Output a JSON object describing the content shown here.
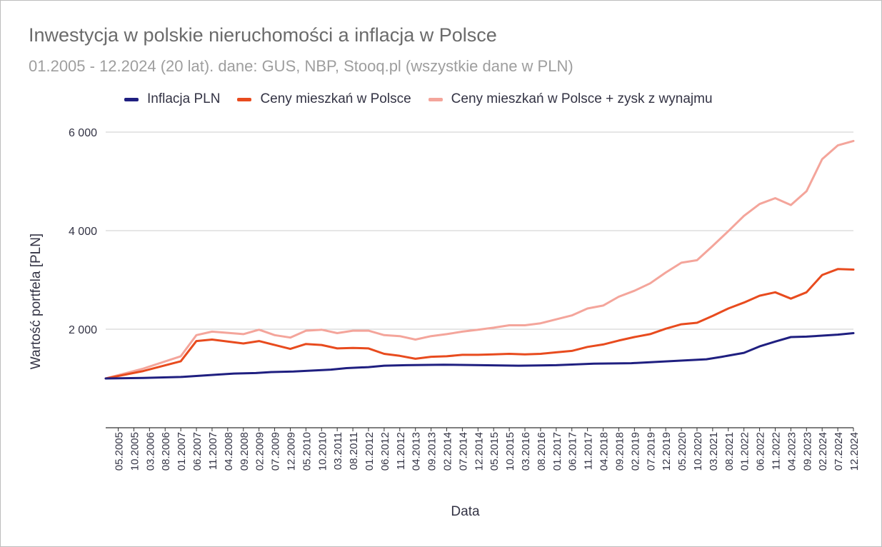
{
  "chart_data": {
    "type": "line",
    "title": "Inwestycja w polskie nieruchomości a inflacja w Polsce",
    "subtitle": "01.2005 - 12.2024 (20 lat). dane: GUS, NBP, Stooq.pl (wszystkie dane w PLN)",
    "xlabel": "Data",
    "ylabel": "Wartość portfela [PLN]",
    "ylim": [
      0,
      6000
    ],
    "xlim": [
      "01.2005",
      "12.2024"
    ],
    "y_ticks": [
      {
        "value": 2000,
        "label": "2 000"
      },
      {
        "value": 4000,
        "label": "4 000"
      },
      {
        "value": 6000,
        "label": "6 000"
      }
    ],
    "x_ticks": [
      "05.2005",
      "10.2005",
      "03.2006",
      "08.2006",
      "01.2007",
      "06.2007",
      "11.2007",
      "04.2008",
      "09.2008",
      "02.2009",
      "07.2009",
      "12.2009",
      "05.2010",
      "10.2010",
      "03.2011",
      "08.2011",
      "01.2012",
      "06.2012",
      "11.2012",
      "04.2013",
      "09.2013",
      "02.2014",
      "07.2014",
      "12.2014",
      "05.2015",
      "10.2015",
      "03.2016",
      "08.2016",
      "01.2017",
      "06.2017",
      "11.2017",
      "04.2018",
      "09.2018",
      "02.2019",
      "07.2019",
      "12.2019",
      "05.2020",
      "10.2020",
      "03.2021",
      "08.2021",
      "01.2022",
      "06.2022",
      "11.2022",
      "04.2023",
      "09.2023",
      "02.2024",
      "07.2024",
      "12.2024"
    ],
    "grid": true,
    "legend_position": "top",
    "series": [
      {
        "name": "Inflacja PLN",
        "color": "#1f1f80",
        "points": [
          [
            "01.2005",
            1000
          ],
          [
            "01.2006",
            1010
          ],
          [
            "01.2007",
            1030
          ],
          [
            "06.2007",
            1050
          ],
          [
            "01.2008",
            1080
          ],
          [
            "06.2008",
            1100
          ],
          [
            "01.2009",
            1110
          ],
          [
            "06.2009",
            1130
          ],
          [
            "01.2010",
            1140
          ],
          [
            "01.2011",
            1180
          ],
          [
            "06.2011",
            1210
          ],
          [
            "01.2012",
            1230
          ],
          [
            "06.2012",
            1260
          ],
          [
            "01.2013",
            1270
          ],
          [
            "01.2014",
            1280
          ],
          [
            "01.2015",
            1270
          ],
          [
            "01.2016",
            1260
          ],
          [
            "01.2017",
            1270
          ],
          [
            "01.2018",
            1300
          ],
          [
            "01.2019",
            1310
          ],
          [
            "01.2020",
            1350
          ],
          [
            "01.2021",
            1390
          ],
          [
            "06.2021",
            1440
          ],
          [
            "01.2022",
            1520
          ],
          [
            "06.2022",
            1650
          ],
          [
            "11.2022",
            1750
          ],
          [
            "04.2023",
            1840
          ],
          [
            "09.2023",
            1850
          ],
          [
            "02.2024",
            1870
          ],
          [
            "07.2024",
            1890
          ],
          [
            "12.2024",
            1920
          ]
        ]
      },
      {
        "name": "Ceny mieszkań w Polsce",
        "color": "#e84b1e",
        "points": [
          [
            "01.2005",
            1000
          ],
          [
            "01.2006",
            1150
          ],
          [
            "01.2007",
            1350
          ],
          [
            "06.2007",
            1760
          ],
          [
            "11.2007",
            1790
          ],
          [
            "09.2008",
            1710
          ],
          [
            "02.2009",
            1760
          ],
          [
            "07.2009",
            1680
          ],
          [
            "12.2009",
            1600
          ],
          [
            "05.2010",
            1700
          ],
          [
            "10.2010",
            1680
          ],
          [
            "03.2011",
            1610
          ],
          [
            "08.2011",
            1620
          ],
          [
            "01.2012",
            1610
          ],
          [
            "06.2012",
            1500
          ],
          [
            "11.2012",
            1460
          ],
          [
            "04.2013",
            1400
          ],
          [
            "09.2013",
            1440
          ],
          [
            "02.2014",
            1450
          ],
          [
            "07.2014",
            1480
          ],
          [
            "12.2014",
            1480
          ],
          [
            "05.2015",
            1490
          ],
          [
            "10.2015",
            1500
          ],
          [
            "03.2016",
            1490
          ],
          [
            "08.2016",
            1500
          ],
          [
            "01.2017",
            1530
          ],
          [
            "06.2017",
            1560
          ],
          [
            "11.2017",
            1640
          ],
          [
            "04.2018",
            1690
          ],
          [
            "09.2018",
            1770
          ],
          [
            "02.2019",
            1840
          ],
          [
            "07.2019",
            1900
          ],
          [
            "12.2019",
            2010
          ],
          [
            "05.2020",
            2100
          ],
          [
            "10.2020",
            2130
          ],
          [
            "03.2021",
            2270
          ],
          [
            "08.2021",
            2420
          ],
          [
            "01.2022",
            2540
          ],
          [
            "06.2022",
            2680
          ],
          [
            "11.2022",
            2750
          ],
          [
            "04.2023",
            2620
          ],
          [
            "09.2023",
            2750
          ],
          [
            "02.2024",
            3100
          ],
          [
            "07.2024",
            3220
          ],
          [
            "12.2024",
            3210
          ]
        ]
      },
      {
        "name": "Ceny mieszkań w Polsce + zysk z wynajmu",
        "color": "#f4a59b",
        "points": [
          [
            "01.2005",
            1000
          ],
          [
            "01.2006",
            1200
          ],
          [
            "01.2007",
            1450
          ],
          [
            "06.2007",
            1880
          ],
          [
            "11.2007",
            1950
          ],
          [
            "09.2008",
            1900
          ],
          [
            "02.2009",
            1990
          ],
          [
            "07.2009",
            1880
          ],
          [
            "12.2009",
            1830
          ],
          [
            "05.2010",
            1970
          ],
          [
            "10.2010",
            1990
          ],
          [
            "03.2011",
            1920
          ],
          [
            "08.2011",
            1970
          ],
          [
            "01.2012",
            1970
          ],
          [
            "06.2012",
            1880
          ],
          [
            "11.2012",
            1860
          ],
          [
            "04.2013",
            1790
          ],
          [
            "09.2013",
            1860
          ],
          [
            "02.2014",
            1900
          ],
          [
            "07.2014",
            1950
          ],
          [
            "12.2014",
            1990
          ],
          [
            "05.2015",
            2030
          ],
          [
            "10.2015",
            2080
          ],
          [
            "03.2016",
            2080
          ],
          [
            "08.2016",
            2120
          ],
          [
            "01.2017",
            2200
          ],
          [
            "06.2017",
            2280
          ],
          [
            "11.2017",
            2420
          ],
          [
            "04.2018",
            2480
          ],
          [
            "09.2018",
            2660
          ],
          [
            "02.2019",
            2780
          ],
          [
            "07.2019",
            2930
          ],
          [
            "12.2019",
            3150
          ],
          [
            "05.2020",
            3350
          ],
          [
            "10.2020",
            3400
          ],
          [
            "03.2021",
            3690
          ],
          [
            "08.2021",
            3990
          ],
          [
            "01.2022",
            4300
          ],
          [
            "06.2022",
            4540
          ],
          [
            "11.2022",
            4660
          ],
          [
            "04.2023",
            4520
          ],
          [
            "09.2023",
            4800
          ],
          [
            "02.2024",
            5450
          ],
          [
            "07.2024",
            5730
          ],
          [
            "12.2024",
            5820
          ]
        ]
      }
    ]
  }
}
